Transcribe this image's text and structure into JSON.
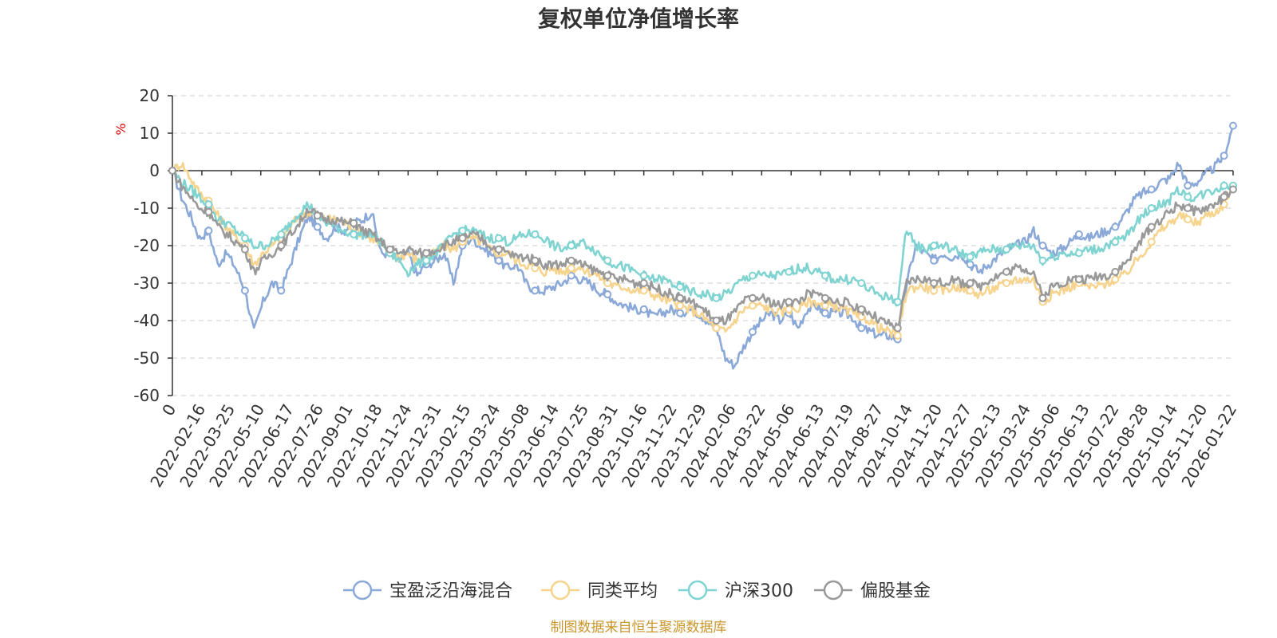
{
  "chart_data": {
    "type": "line",
    "title": "复权单位净值增长率",
    "ylabel": "%",
    "ylim": [
      -60,
      20
    ],
    "yticks": [
      20,
      10,
      0,
      -10,
      -20,
      -30,
      -40,
      -50,
      -60
    ],
    "grid": true,
    "legend_position": "bottom",
    "x_tick_labels": [
      "0",
      "2022-02-16",
      "2022-03-25",
      "2022-05-10",
      "2022-06-17",
      "2022-07-26",
      "2022-09-01",
      "2022-10-18",
      "2022-11-24",
      "2022-12-31",
      "2023-02-15",
      "2023-03-24",
      "2023-05-08",
      "2023-06-14",
      "2023-07-25",
      "2023-08-31",
      "2023-10-16",
      "2023-11-22",
      "2023-12-29",
      "2024-02-06",
      "2024-03-22",
      "2024-05-06",
      "2024-06-13",
      "2024-07-19",
      "2024-08-27",
      "2024-10-14",
      "2024-11-20",
      "2024-12-27",
      "2025-02-13",
      "2025-03-24",
      "2025-05-06",
      "2025-06-13",
      "2025-07-22",
      "2025-08-28",
      "2025-10-14",
      "2025-11-20",
      "2026-01-22"
    ],
    "series": [
      {
        "name": "宝盈泛沿海混合",
        "color": "#8aa8d8",
        "values": [
          0,
          -7,
          -12,
          -18,
          -16,
          -25,
          -22,
          -26,
          -32,
          -43,
          -35,
          -30,
          -32,
          -25,
          -18,
          -12,
          -15,
          -18,
          -15,
          -16,
          -14,
          -13,
          -11,
          -22,
          -22,
          -24,
          -22,
          -28,
          -25,
          -24,
          -22,
          -30,
          -20,
          -18,
          -20,
          -22,
          -24,
          -26,
          -25,
          -30,
          -32,
          -32,
          -31,
          -30,
          -28,
          -29,
          -30,
          -32,
          -33,
          -35,
          -36,
          -37,
          -37,
          -39,
          -38,
          -37,
          -38,
          -37,
          -38,
          -40,
          -42,
          -50,
          -52,
          -47,
          -43,
          -40,
          -38,
          -40,
          -38,
          -42,
          -37,
          -36,
          -38,
          -38,
          -38,
          -39,
          -42,
          -43,
          -44,
          -44,
          -45,
          -30,
          -20,
          -22,
          -24,
          -22,
          -23,
          -22,
          -25,
          -27,
          -25,
          -23,
          -21,
          -20,
          -19,
          -16,
          -20,
          -22,
          -21,
          -19,
          -17,
          -18,
          -17,
          -16,
          -15,
          -12,
          -8,
          -6,
          -5,
          -3,
          -2,
          2,
          -4,
          -3,
          -1,
          1,
          4,
          12
        ]
      },
      {
        "name": "同类平均",
        "color": "#f7d48e",
        "values": [
          0,
          2,
          -2,
          -6,
          -8,
          -12,
          -15,
          -18,
          -20,
          -25,
          -22,
          -20,
          -18,
          -15,
          -12,
          -11,
          -12,
          -13,
          -13,
          -14,
          -15,
          -17,
          -18,
          -20,
          -22,
          -23,
          -22,
          -24,
          -23,
          -22,
          -20,
          -21,
          -19,
          -18,
          -19,
          -21,
          -22,
          -22,
          -24,
          -25,
          -26,
          -27,
          -26,
          -27,
          -26,
          -26,
          -27,
          -28,
          -30,
          -31,
          -31,
          -32,
          -32,
          -33,
          -34,
          -35,
          -36,
          -37,
          -38,
          -40,
          -42,
          -43,
          -40,
          -37,
          -36,
          -36,
          -37,
          -38,
          -37,
          -37,
          -35,
          -35,
          -36,
          -36,
          -37,
          -38,
          -39,
          -40,
          -42,
          -43,
          -44,
          -32,
          -31,
          -31,
          -32,
          -32,
          -31,
          -31,
          -32,
          -33,
          -32,
          -31,
          -30,
          -29,
          -29,
          -29,
          -35,
          -33,
          -32,
          -31,
          -30,
          -31,
          -31,
          -30,
          -29,
          -28,
          -25,
          -22,
          -19,
          -16,
          -14,
          -12,
          -13,
          -14,
          -12,
          -11,
          -9,
          -4
        ]
      },
      {
        "name": "沪深300",
        "color": "#7fd4d2",
        "values": [
          0,
          -3,
          -5,
          -7,
          -9,
          -13,
          -14,
          -16,
          -18,
          -20,
          -20,
          -19,
          -17,
          -14,
          -11,
          -9,
          -12,
          -14,
          -15,
          -16,
          -17,
          -17,
          -17,
          -19,
          -22,
          -24,
          -27,
          -25,
          -24,
          -22,
          -20,
          -17,
          -16,
          -16,
          -17,
          -18,
          -18,
          -19,
          -18,
          -17,
          -17,
          -18,
          -20,
          -21,
          -20,
          -19,
          -20,
          -22,
          -24,
          -25,
          -26,
          -27,
          -28,
          -29,
          -29,
          -30,
          -31,
          -32,
          -33,
          -33,
          -34,
          -33,
          -31,
          -29,
          -28,
          -28,
          -28,
          -28,
          -27,
          -26,
          -26,
          -27,
          -28,
          -29,
          -29,
          -29,
          -30,
          -32,
          -33,
          -34,
          -35,
          -15,
          -20,
          -21,
          -20,
          -20,
          -21,
          -22,
          -23,
          -22,
          -21,
          -21,
          -21,
          -20,
          -20,
          -20,
          -24,
          -23,
          -22,
          -22,
          -22,
          -21,
          -21,
          -20,
          -19,
          -18,
          -15,
          -12,
          -10,
          -9,
          -8,
          -5,
          -7,
          -7,
          -6,
          -5,
          -4,
          -4
        ]
      },
      {
        "name": "偏股基金",
        "color": "#999999",
        "values": [
          0,
          -4,
          -7,
          -10,
          -11,
          -15,
          -17,
          -19,
          -21,
          -27,
          -24,
          -22,
          -20,
          -17,
          -14,
          -10,
          -12,
          -13,
          -13,
          -14,
          -14,
          -16,
          -17,
          -19,
          -21,
          -22,
          -21,
          -22,
          -22,
          -21,
          -20,
          -19,
          -18,
          -17,
          -18,
          -20,
          -21,
          -22,
          -23,
          -23,
          -24,
          -25,
          -25,
          -25,
          -24,
          -25,
          -26,
          -27,
          -28,
          -29,
          -29,
          -30,
          -30,
          -31,
          -32,
          -33,
          -34,
          -35,
          -36,
          -38,
          -40,
          -40,
          -38,
          -35,
          -34,
          -34,
          -35,
          -36,
          -35,
          -35,
          -33,
          -33,
          -34,
          -35,
          -35,
          -36,
          -37,
          -38,
          -40,
          -41,
          -42,
          -30,
          -29,
          -29,
          -30,
          -30,
          -29,
          -30,
          -30,
          -31,
          -29,
          -28,
          -27,
          -26,
          -26,
          -27,
          -34,
          -31,
          -30,
          -29,
          -29,
          -29,
          -28,
          -28,
          -27,
          -25,
          -22,
          -18,
          -15,
          -13,
          -11,
          -9,
          -10,
          -11,
          -10,
          -9,
          -7,
          -5
        ]
      }
    ]
  },
  "footer": "制图数据来自恒生聚源数据库"
}
